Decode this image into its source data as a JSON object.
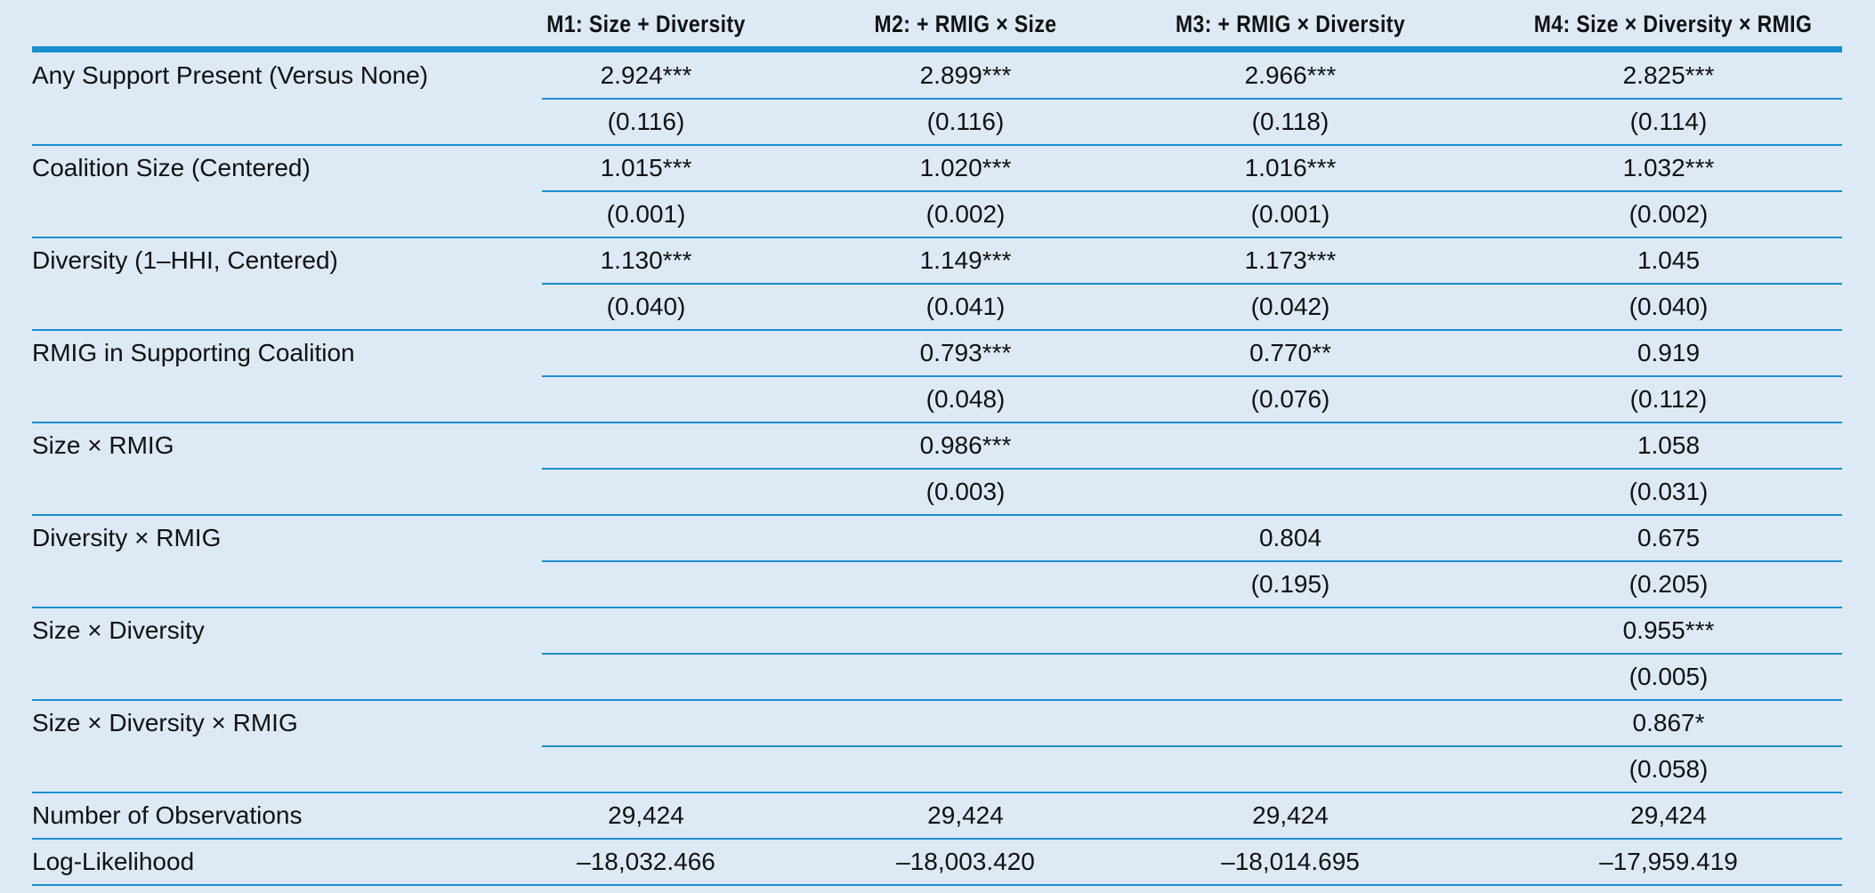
{
  "table": {
    "columns": [
      "M1: Size + Diversity",
      "M2: + RMIG × Size",
      "M3: + RMIG × Diversity",
      "M4: Size × Diversity × RMIG"
    ],
    "rows": [
      {
        "label": "Any Support Present (Versus None)",
        "coef": [
          "2.924***",
          "2.899***",
          "2.966***",
          "2.825***"
        ],
        "se": [
          "(0.116)",
          "(0.116)",
          "(0.118)",
          "(0.114)"
        ]
      },
      {
        "label": "Coalition Size (Centered)",
        "coef": [
          "1.015***",
          "1.020***",
          "1.016***",
          "1.032***"
        ],
        "se": [
          "(0.001)",
          "(0.002)",
          "(0.001)",
          "(0.002)"
        ]
      },
      {
        "label": "Diversity (1–HHI, Centered)",
        "coef": [
          "1.130***",
          "1.149***",
          "1.173***",
          "1.045"
        ],
        "se": [
          "(0.040)",
          "(0.041)",
          "(0.042)",
          "(0.040)"
        ]
      },
      {
        "label": "RMIG in Supporting Coalition",
        "coef": [
          null,
          "0.793***",
          "0.770**",
          "0.919"
        ],
        "se": [
          null,
          "(0.048)",
          "(0.076)",
          "(0.112)"
        ]
      },
      {
        "label": "Size × RMIG",
        "coef": [
          null,
          "0.986***",
          null,
          "1.058"
        ],
        "se": [
          null,
          "(0.003)",
          null,
          "(0.031)"
        ]
      },
      {
        "label": "Diversity × RMIG",
        "coef": [
          null,
          null,
          "0.804",
          "0.675"
        ],
        "se": [
          null,
          null,
          "(0.195)",
          "(0.205)"
        ]
      },
      {
        "label": "Size × Diversity",
        "coef": [
          null,
          null,
          null,
          "0.955***"
        ],
        "se": [
          null,
          null,
          null,
          "(0.005)"
        ]
      },
      {
        "label": "Size × Diversity × RMIG",
        "coef": [
          null,
          null,
          null,
          "0.867*"
        ],
        "se": [
          null,
          null,
          null,
          "(0.058)"
        ]
      }
    ],
    "stats": [
      {
        "label": "Number of Observations",
        "values": [
          "29,424",
          "29,424",
          "29,424",
          "29,424"
        ]
      },
      {
        "label": "Log-Likelihood",
        "values": [
          "–18,032.466",
          "–18,003.420",
          "–18,014.695",
          "–17,959.419"
        ]
      }
    ]
  }
}
